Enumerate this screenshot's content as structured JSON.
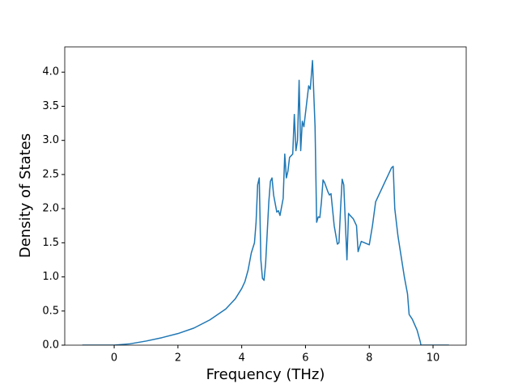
{
  "chart_data": {
    "type": "line",
    "xlabel": "Frequency (THz)",
    "ylabel": "Density of States",
    "x": [
      -1,
      0,
      0.5,
      1,
      1.5,
      2,
      2.5,
      3,
      3.5,
      3.8,
      4,
      4.1,
      4.2,
      4.3,
      4.4,
      4.45,
      4.5,
      4.55,
      4.6,
      4.65,
      4.7,
      4.75,
      4.85,
      4.9,
      4.95,
      5.0,
      5.1,
      5.15,
      5.2,
      5.3,
      5.35,
      5.4,
      5.45,
      5.5,
      5.6,
      5.65,
      5.7,
      5.75,
      5.8,
      5.85,
      5.9,
      5.95,
      6.0,
      6.1,
      6.15,
      6.22,
      6.3,
      6.35,
      6.4,
      6.45,
      6.5,
      6.55,
      6.6,
      6.7,
      6.75,
      6.8,
      6.9,
      7.0,
      7.05,
      7.1,
      7.15,
      7.2,
      7.3,
      7.35,
      7.4,
      7.5,
      7.6,
      7.65,
      7.75,
      7.85,
      8.0,
      8.1,
      8.2,
      8.3,
      8.4,
      8.5,
      8.6,
      8.7,
      8.75,
      8.8,
      8.9,
      9.0,
      9.1,
      9.2,
      9.25,
      9.35,
      9.5,
      9.6,
      9.62,
      10.5
    ],
    "values": [
      0,
      0,
      0.02,
      0.06,
      0.11,
      0.17,
      0.25,
      0.37,
      0.53,
      0.68,
      0.83,
      0.93,
      1.1,
      1.35,
      1.5,
      1.8,
      2.35,
      2.45,
      1.25,
      0.98,
      0.95,
      1.2,
      2.1,
      2.4,
      2.45,
      2.2,
      1.95,
      1.97,
      1.9,
      2.15,
      2.8,
      2.45,
      2.55,
      2.75,
      2.8,
      3.38,
      2.85,
      3.0,
      3.88,
      2.85,
      3.28,
      3.2,
      3.4,
      3.8,
      3.75,
      4.17,
      3.2,
      1.8,
      1.88,
      1.87,
      2.1,
      2.42,
      2.38,
      2.25,
      2.2,
      2.22,
      1.75,
      1.48,
      1.5,
      2.0,
      2.43,
      2.35,
      1.25,
      1.93,
      1.9,
      1.85,
      1.75,
      1.37,
      1.52,
      1.5,
      1.47,
      1.75,
      2.1,
      2.2,
      2.3,
      2.4,
      2.5,
      2.6,
      2.62,
      2.0,
      1.6,
      1.3,
      1.0,
      0.75,
      0.45,
      0.38,
      0.22,
      0.05,
      0,
      0
    ],
    "color": "#1f77b4",
    "xlim": [
      -1.55,
      11.04
    ],
    "ylim": [
      0,
      4.37
    ],
    "xticks": [
      0,
      2,
      4,
      6,
      8,
      10
    ],
    "yticks": [
      {
        "value": 0,
        "label": "0.0"
      },
      {
        "value": 0.5,
        "label": "0.5"
      },
      {
        "value": 1,
        "label": "1.0"
      },
      {
        "value": 1.5,
        "label": "1.5"
      },
      {
        "value": 2,
        "label": "2.0"
      },
      {
        "value": 2.5,
        "label": "2.5"
      },
      {
        "value": 3,
        "label": "3.0"
      },
      {
        "value": 3.5,
        "label": "3.5"
      },
      {
        "value": 4,
        "label": "4.0"
      }
    ]
  }
}
